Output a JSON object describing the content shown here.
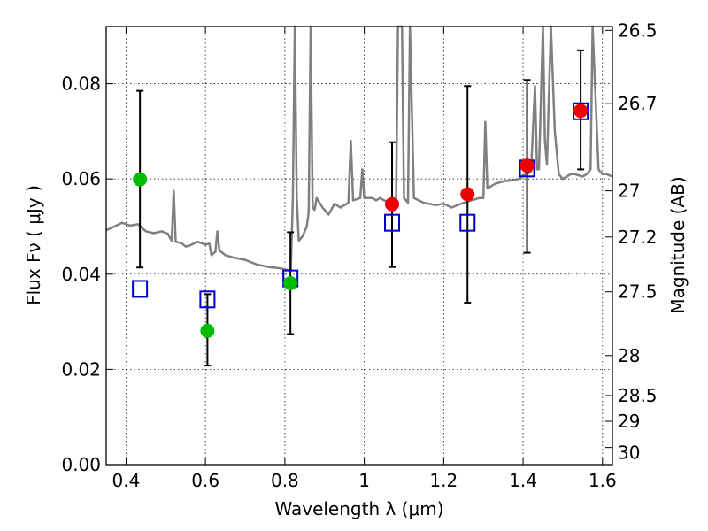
{
  "chart_data": {
    "type": "scatter",
    "xlabel": "Wavelength  λ (μm)",
    "ylabel": "Flux  Fν  ( μJy )",
    "y2label": "Magnitude (AB)",
    "xlim": [
      0.35,
      1.625
    ],
    "ylim": [
      0.0,
      0.092
    ],
    "x_ticks": [
      0.4,
      0.6,
      0.8,
      1.0,
      1.2,
      1.4,
      1.6
    ],
    "x_tick_labels": [
      "0.4",
      "0.6",
      "0.8",
      "1",
      "1.2",
      "1.4",
      "1.6"
    ],
    "y_ticks": [
      0.0,
      0.02,
      0.04,
      0.06,
      0.08
    ],
    "y_tick_labels": [
      "0.00",
      "0.02",
      "0.04",
      "0.06",
      "0.08"
    ],
    "mag_ticks": [
      {
        "label": "26.5",
        "flux": 0.0912
      },
      {
        "label": "26.7",
        "flux": 0.0758
      },
      {
        "label": "27",
        "flux": 0.0575
      },
      {
        "label": "27.2",
        "flux": 0.0478
      },
      {
        "label": "27.5",
        "flux": 0.0363
      },
      {
        "label": "28",
        "flux": 0.0229
      },
      {
        "label": "28.5",
        "flux": 0.0145
      },
      {
        "label": "29",
        "flux": 0.0091
      },
      {
        "label": "30",
        "flux": 0.0036
      }
    ],
    "grid": true,
    "colors": {
      "spectrum": "#808080",
      "model": "#0000cc",
      "green": "#00bb00",
      "red": "#ee0000",
      "errorbar": "#000000"
    },
    "spectrum": [
      [
        0.35,
        0.0492
      ],
      [
        0.37,
        0.05
      ],
      [
        0.39,
        0.0508
      ],
      [
        0.41,
        0.0502
      ],
      [
        0.43,
        0.0505
      ],
      [
        0.45,
        0.049
      ],
      [
        0.47,
        0.0486
      ],
      [
        0.49,
        0.049
      ],
      [
        0.505,
        0.0485
      ],
      [
        0.515,
        0.047
      ],
      [
        0.52,
        0.0575
      ],
      [
        0.525,
        0.0468
      ],
      [
        0.54,
        0.0465
      ],
      [
        0.55,
        0.0458
      ],
      [
        0.56,
        0.046
      ],
      [
        0.58,
        0.0468
      ],
      [
        0.6,
        0.0462
      ],
      [
        0.61,
        0.0464
      ],
      [
        0.615,
        0.044
      ],
      [
        0.625,
        0.0447
      ],
      [
        0.63,
        0.049
      ],
      [
        0.635,
        0.045
      ],
      [
        0.65,
        0.044
      ],
      [
        0.67,
        0.0435
      ],
      [
        0.7,
        0.043
      ],
      [
        0.73,
        0.042
      ],
      [
        0.76,
        0.0415
      ],
      [
        0.79,
        0.0412
      ],
      [
        0.8,
        0.041
      ],
      [
        0.81,
        0.0408
      ],
      [
        0.815,
        0.0409
      ],
      [
        0.82,
        0.056
      ],
      [
        0.825,
        0.092
      ],
      [
        0.83,
        0.056
      ],
      [
        0.835,
        0.047
      ],
      [
        0.845,
        0.048
      ],
      [
        0.855,
        0.05
      ],
      [
        0.86,
        0.053
      ],
      [
        0.865,
        0.092
      ],
      [
        0.87,
        0.054
      ],
      [
        0.875,
        0.0535
      ],
      [
        0.88,
        0.056
      ],
      [
        0.895,
        0.054
      ],
      [
        0.91,
        0.0525
      ],
      [
        0.925,
        0.0548
      ],
      [
        0.94,
        0.054
      ],
      [
        0.96,
        0.055
      ],
      [
        0.966,
        0.068
      ],
      [
        0.972,
        0.0555
      ],
      [
        0.99,
        0.056
      ],
      [
        0.995,
        0.062
      ],
      [
        1.0,
        0.056
      ],
      [
        1.02,
        0.056
      ],
      [
        1.03,
        0.0555
      ],
      [
        1.04,
        0.056
      ],
      [
        1.05,
        0.0555
      ],
      [
        1.065,
        0.055
      ],
      [
        1.08,
        0.0552
      ],
      [
        1.085,
        0.092
      ],
      [
        1.095,
        0.092
      ],
      [
        1.1,
        0.056
      ],
      [
        1.11,
        0.055
      ],
      [
        1.115,
        0.092
      ],
      [
        1.125,
        0.056
      ],
      [
        1.15,
        0.055
      ],
      [
        1.18,
        0.0545
      ],
      [
        1.2,
        0.0548
      ],
      [
        1.22,
        0.054
      ],
      [
        1.25,
        0.055
      ],
      [
        1.27,
        0.0555
      ],
      [
        1.29,
        0.056
      ],
      [
        1.3,
        0.056
      ],
      [
        1.305,
        0.072
      ],
      [
        1.31,
        0.058
      ],
      [
        1.33,
        0.059
      ],
      [
        1.35,
        0.0595
      ],
      [
        1.37,
        0.0597
      ],
      [
        1.39,
        0.06
      ],
      [
        1.4,
        0.0608
      ],
      [
        1.41,
        0.061
      ],
      [
        1.42,
        0.0615
      ],
      [
        1.43,
        0.0795
      ],
      [
        1.435,
        0.062
      ],
      [
        1.44,
        0.062
      ],
      [
        1.45,
        0.092
      ],
      [
        1.455,
        0.068
      ],
      [
        1.46,
        0.063
      ],
      [
        1.47,
        0.092
      ],
      [
        1.48,
        0.07
      ],
      [
        1.49,
        0.061
      ],
      [
        1.5,
        0.06
      ],
      [
        1.51,
        0.0605
      ],
      [
        1.52,
        0.061
      ],
      [
        1.53,
        0.061
      ],
      [
        1.55,
        0.0605
      ],
      [
        1.56,
        0.061
      ],
      [
        1.57,
        0.062
      ],
      [
        1.575,
        0.092
      ],
      [
        1.59,
        0.062
      ],
      [
        1.6,
        0.061
      ],
      [
        1.61,
        0.061
      ],
      [
        1.625,
        0.0605
      ]
    ],
    "model_points": [
      {
        "x": 0.435,
        "y": 0.0369
      },
      {
        "x": 0.605,
        "y": 0.0347
      },
      {
        "x": 0.814,
        "y": 0.0391
      },
      {
        "x": 1.07,
        "y": 0.0508
      },
      {
        "x": 1.26,
        "y": 0.0508
      },
      {
        "x": 1.41,
        "y": 0.0622
      },
      {
        "x": 1.545,
        "y": 0.0742
      }
    ],
    "observed_points": [
      {
        "x": 0.435,
        "y": 0.0599,
        "err_lo": 0.0414,
        "err_hi": 0.0785,
        "color": "green"
      },
      {
        "x": 0.605,
        "y": 0.0281,
        "err_lo": 0.0208,
        "err_hi": 0.0358,
        "color": "green"
      },
      {
        "x": 0.814,
        "y": 0.0381,
        "err_lo": 0.0274,
        "err_hi": 0.0488,
        "color": "green"
      },
      {
        "x": 1.07,
        "y": 0.0547,
        "err_lo": 0.0415,
        "err_hi": 0.0677,
        "color": "red"
      },
      {
        "x": 1.26,
        "y": 0.0568,
        "err_lo": 0.034,
        "err_hi": 0.0795,
        "color": "red"
      },
      {
        "x": 1.41,
        "y": 0.0628,
        "err_lo": 0.0445,
        "err_hi": 0.0808,
        "color": "red"
      },
      {
        "x": 1.545,
        "y": 0.0743,
        "err_lo": 0.062,
        "err_hi": 0.087,
        "color": "red"
      }
    ]
  }
}
